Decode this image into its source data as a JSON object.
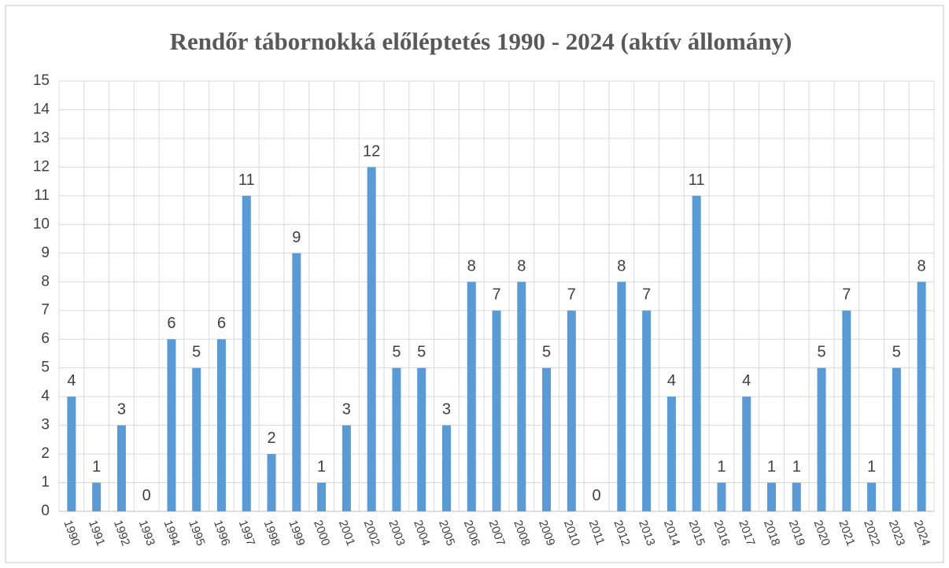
{
  "chart_data": {
    "type": "bar",
    "title": "Rendőr tábornokká előléptetés 1990 - 2024 (aktív állomány)",
    "categories": [
      "1990",
      "1991",
      "1992",
      "1993",
      "1994",
      "1995",
      "1996",
      "1997",
      "1998",
      "1999",
      "2000",
      "2001",
      "2002",
      "2003",
      "2004",
      "2005",
      "2006",
      "2007",
      "2008",
      "2009",
      "2010",
      "2011",
      "2012",
      "2013",
      "2014",
      "2015",
      "2016",
      "2017",
      "2018",
      "2019",
      "2020",
      "2021",
      "2022",
      "2023",
      "2024"
    ],
    "values": [
      4,
      1,
      3,
      0,
      6,
      5,
      6,
      11,
      2,
      9,
      1,
      3,
      12,
      5,
      5,
      3,
      8,
      7,
      8,
      5,
      7,
      0,
      8,
      7,
      4,
      11,
      1,
      4,
      1,
      1,
      5,
      7,
      1,
      5,
      8
    ],
    "color": "#5b9bd5",
    "ylim": [
      0,
      15
    ],
    "yticks": [
      0,
      1,
      2,
      3,
      4,
      5,
      6,
      7,
      8,
      9,
      10,
      11,
      12,
      13,
      14,
      15
    ],
    "grid": true
  }
}
